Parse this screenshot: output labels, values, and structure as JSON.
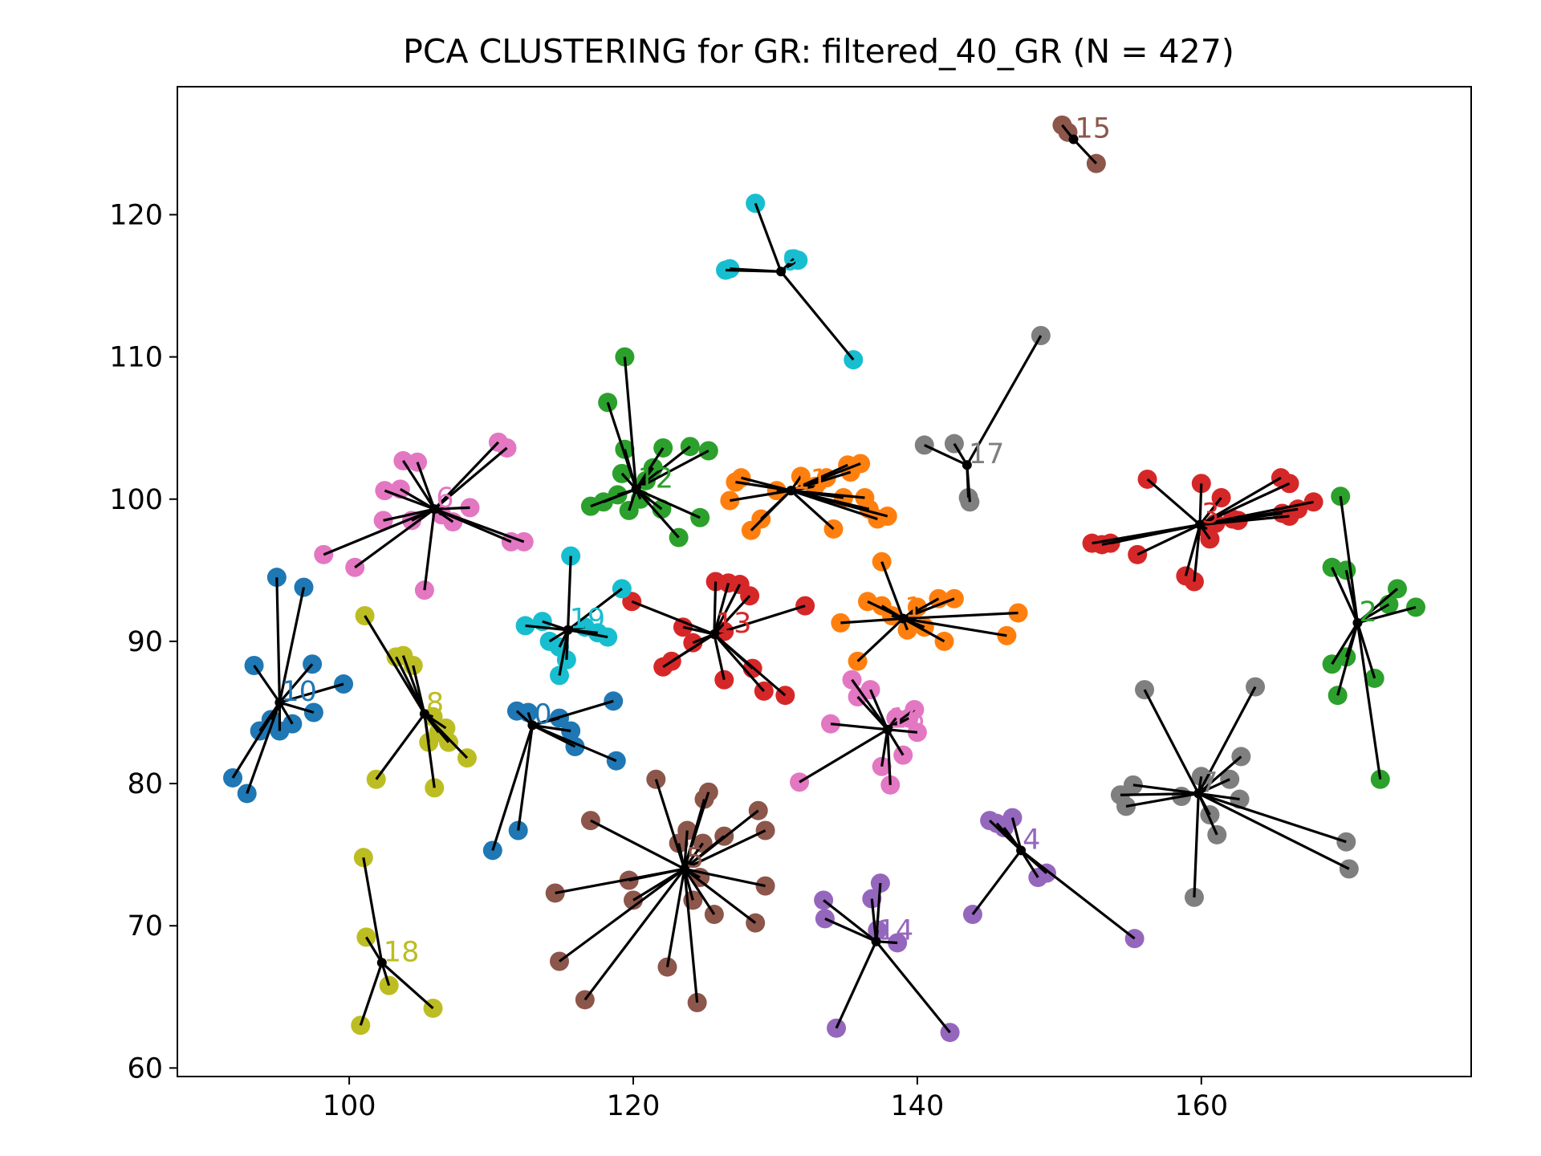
{
  "chart_data": {
    "type": "scatter",
    "title": "PCA CLUSTERING for GR: filtered_40_GR  (N = 427)",
    "xlabel": "",
    "ylabel": "",
    "xlim": [
      87.9,
      179.0
    ],
    "ylim": [
      59.4,
      129.0
    ],
    "xticks": [
      100,
      120,
      140,
      160
    ],
    "yticks": [
      60,
      70,
      80,
      90,
      100,
      110,
      120
    ],
    "grid": false,
    "legend": "none",
    "center_color": "#000000",
    "clusters": [
      {
        "label": "0",
        "color": "#1f77b4",
        "center": [
          112.9,
          84.1
        ],
        "points": [
          [
            110.1,
            75.3
          ],
          [
            111.9,
            76.7
          ],
          [
            111.8,
            85.1
          ],
          [
            112.6,
            85.0
          ],
          [
            114.8,
            84.6
          ],
          [
            115.6,
            83.7
          ],
          [
            115.9,
            82.6
          ],
          [
            118.6,
            85.8
          ],
          [
            118.8,
            81.6
          ]
        ]
      },
      {
        "label": "1",
        "color": "#ff7f0e",
        "center": [
          139.0,
          91.6
        ],
        "points": [
          [
            137.5,
            95.6
          ],
          [
            134.6,
            91.3
          ],
          [
            135.8,
            88.6
          ],
          [
            136.5,
            92.8
          ],
          [
            137.5,
            92.5
          ],
          [
            138.2,
            91.8
          ],
          [
            139.3,
            90.8
          ],
          [
            140.0,
            92.4
          ],
          [
            140.5,
            91.0
          ],
          [
            141.5,
            93.0
          ],
          [
            141.9,
            90.0
          ],
          [
            142.6,
            93.0
          ],
          [
            146.3,
            90.4
          ],
          [
            147.1,
            92.0
          ]
        ]
      },
      {
        "label": "2",
        "color": "#2ca02c",
        "center": [
          171.0,
          91.3
        ],
        "points": [
          [
            169.2,
            95.2
          ],
          [
            170.2,
            95.0
          ],
          [
            169.2,
            88.4
          ],
          [
            169.6,
            86.2
          ],
          [
            170.2,
            88.9
          ],
          [
            172.2,
            87.4
          ],
          [
            172.6,
            80.3
          ],
          [
            169.8,
            100.2
          ],
          [
            173.8,
            93.7
          ],
          [
            173.2,
            92.6
          ],
          [
            175.1,
            92.4
          ]
        ]
      },
      {
        "label": "3",
        "color": "#d62728",
        "center": [
          159.9,
          98.2
        ],
        "points": [
          [
            152.3,
            96.9
          ],
          [
            153.0,
            96.8
          ],
          [
            153.6,
            96.9
          ],
          [
            155.5,
            96.1
          ],
          [
            156.2,
            101.4
          ],
          [
            158.9,
            94.6
          ],
          [
            159.5,
            94.2
          ],
          [
            160.0,
            101.1
          ],
          [
            160.4,
            97.9
          ],
          [
            160.6,
            97.2
          ],
          [
            161.4,
            100.1
          ],
          [
            162.2,
            98.6
          ],
          [
            162.6,
            98.5
          ],
          [
            165.7,
            99.0
          ],
          [
            165.6,
            101.5
          ],
          [
            166.2,
            101.1
          ],
          [
            166.8,
            99.3
          ],
          [
            167.9,
            99.8
          ],
          [
            166.2,
            98.8
          ],
          [
            161.0,
            98.3
          ]
        ]
      },
      {
        "label": "4",
        "color": "#9467bd",
        "center": [
          147.3,
          75.3
        ],
        "points": [
          [
            145.1,
            77.4
          ],
          [
            145.6,
            77.2
          ],
          [
            146.1,
            76.9
          ],
          [
            146.7,
            77.6
          ],
          [
            148.5,
            73.4
          ],
          [
            149.1,
            73.7
          ],
          [
            143.9,
            70.8
          ],
          [
            155.3,
            69.1
          ]
        ]
      },
      {
        "label": "5",
        "color": "#8c564b",
        "center": [
          123.6,
          74.0
        ],
        "points": [
          [
            114.5,
            72.3
          ],
          [
            114.8,
            67.5
          ],
          [
            116.6,
            64.8
          ],
          [
            117.0,
            77.4
          ],
          [
            119.7,
            73.2
          ],
          [
            120.0,
            71.8
          ],
          [
            121.6,
            80.3
          ],
          [
            122.4,
            67.1
          ],
          [
            123.2,
            75.8
          ],
          [
            123.8,
            76.7
          ],
          [
            124.2,
            71.8
          ],
          [
            124.5,
            64.6
          ],
          [
            124.9,
            75.8
          ],
          [
            125.3,
            79.4
          ],
          [
            125.0,
            78.9
          ],
          [
            125.7,
            70.8
          ],
          [
            126.4,
            76.3
          ],
          [
            128.6,
            70.2
          ],
          [
            128.8,
            78.1
          ],
          [
            129.3,
            72.8
          ],
          [
            129.3,
            76.7
          ],
          [
            124.7,
            73.4
          ]
        ]
      },
      {
        "label": "6",
        "color": "#e377c2",
        "center": [
          106.0,
          99.3
        ],
        "points": [
          [
            98.2,
            96.1
          ],
          [
            100.4,
            95.2
          ],
          [
            102.5,
            100.6
          ],
          [
            103.8,
            102.7
          ],
          [
            104.8,
            102.6
          ],
          [
            105.3,
            93.6
          ],
          [
            104.4,
            98.5
          ],
          [
            102.4,
            98.5
          ],
          [
            106.5,
            98.9
          ],
          [
            107.3,
            98.4
          ],
          [
            108.5,
            99.4
          ],
          [
            110.5,
            104.0
          ],
          [
            111.1,
            103.6
          ],
          [
            111.4,
            97.0
          ],
          [
            112.3,
            97.0
          ],
          [
            103.6,
            100.7
          ]
        ]
      },
      {
        "label": "7",
        "color": "#7f7f7f",
        "center": [
          159.8,
          79.3
        ],
        "points": [
          [
            154.3,
            79.2
          ],
          [
            154.7,
            78.4
          ],
          [
            155.2,
            79.9
          ],
          [
            156.0,
            86.6
          ],
          [
            158.6,
            79.1
          ],
          [
            159.5,
            72.0
          ],
          [
            160.0,
            80.5
          ],
          [
            160.6,
            77.8
          ],
          [
            161.1,
            76.4
          ],
          [
            162.0,
            80.3
          ],
          [
            162.8,
            81.9
          ],
          [
            162.7,
            78.9
          ],
          [
            163.8,
            86.8
          ],
          [
            170.2,
            75.9
          ],
          [
            170.4,
            74.0
          ]
        ]
      },
      {
        "label": "8",
        "color": "#bcbd22",
        "center": [
          105.3,
          84.9
        ],
        "points": [
          [
            101.1,
            91.8
          ],
          [
            101.9,
            80.3
          ],
          [
            103.3,
            88.9
          ],
          [
            103.8,
            89.0
          ],
          [
            104.5,
            88.3
          ],
          [
            105.6,
            82.9
          ],
          [
            106.0,
            79.7
          ],
          [
            106.3,
            83.6
          ],
          [
            106.8,
            83.9
          ],
          [
            107.0,
            82.9
          ],
          [
            108.3,
            81.8
          ],
          [
            105.9,
            84.7
          ]
        ]
      },
      {
        "label": "9",
        "color": "#17becf",
        "center": [
          130.4,
          116.0
        ],
        "points": [
          [
            126.5,
            116.1
          ],
          [
            126.8,
            116.2
          ],
          [
            128.6,
            120.8
          ],
          [
            131.3,
            116.9
          ],
          [
            131.6,
            116.8
          ],
          [
            135.5,
            109.8
          ]
        ]
      },
      {
        "label": "10",
        "color": "#1f77b4",
        "center": [
          95.1,
          85.7
        ],
        "points": [
          [
            91.8,
            80.4
          ],
          [
            92.8,
            79.3
          ],
          [
            93.3,
            88.3
          ],
          [
            93.7,
            83.7
          ],
          [
            94.5,
            84.5
          ],
          [
            94.9,
            94.5
          ],
          [
            95.1,
            83.7
          ],
          [
            96.0,
            84.2
          ],
          [
            96.8,
            93.8
          ],
          [
            97.4,
            88.4
          ],
          [
            97.5,
            85.0
          ],
          [
            99.6,
            87.0
          ]
        ]
      },
      {
        "label": "11",
        "color": "#ff7f0e",
        "center": [
          131.1,
          100.6
        ],
        "points": [
          [
            126.8,
            99.9
          ],
          [
            127.2,
            101.2
          ],
          [
            127.6,
            101.5
          ],
          [
            128.3,
            97.8
          ],
          [
            129.0,
            98.6
          ],
          [
            130.1,
            100.6
          ],
          [
            131.8,
            101.6
          ],
          [
            132.8,
            100.9
          ],
          [
            133.6,
            101.5
          ],
          [
            134.1,
            97.9
          ],
          [
            134.8,
            100.1
          ],
          [
            135.1,
            102.4
          ],
          [
            136.0,
            102.5
          ],
          [
            136.3,
            100.1
          ],
          [
            136.6,
            99.3
          ],
          [
            137.2,
            98.6
          ],
          [
            137.9,
            98.8
          ],
          [
            135.3,
            101.9
          ]
        ]
      },
      {
        "label": "12",
        "color": "#2ca02c",
        "center": [
          120.2,
          100.7
        ],
        "points": [
          [
            117.0,
            99.5
          ],
          [
            117.9,
            99.8
          ],
          [
            118.2,
            106.8
          ],
          [
            118.9,
            100.3
          ],
          [
            119.2,
            101.8
          ],
          [
            119.4,
            110.0
          ],
          [
            119.4,
            103.5
          ],
          [
            119.7,
            99.2
          ],
          [
            120.5,
            100.0
          ],
          [
            120.9,
            101.3
          ],
          [
            121.4,
            102.2
          ],
          [
            122.0,
            99.3
          ],
          [
            122.1,
            103.6
          ],
          [
            123.2,
            97.3
          ],
          [
            124.0,
            103.7
          ],
          [
            124.7,
            98.7
          ],
          [
            125.3,
            103.4
          ]
        ]
      },
      {
        "label": "13",
        "color": "#d62728",
        "center": [
          125.7,
          90.5
        ],
        "points": [
          [
            119.9,
            92.8
          ],
          [
            122.1,
            88.2
          ],
          [
            122.7,
            88.6
          ],
          [
            123.5,
            91.0
          ],
          [
            124.2,
            89.9
          ],
          [
            125.8,
            94.2
          ],
          [
            126.4,
            87.3
          ],
          [
            126.4,
            90.7
          ],
          [
            126.7,
            94.1
          ],
          [
            127.5,
            94.0
          ],
          [
            128.2,
            93.2
          ],
          [
            128.4,
            88.1
          ],
          [
            129.2,
            86.5
          ],
          [
            130.7,
            86.2
          ],
          [
            132.1,
            92.5
          ]
        ]
      },
      {
        "label": "14",
        "color": "#9467bd",
        "center": [
          137.1,
          68.9
        ],
        "points": [
          [
            133.4,
            71.8
          ],
          [
            133.5,
            70.5
          ],
          [
            134.3,
            62.8
          ],
          [
            136.8,
            71.9
          ],
          [
            137.2,
            69.7
          ],
          [
            137.4,
            73.0
          ],
          [
            138.6,
            68.8
          ],
          [
            142.3,
            62.5
          ]
        ]
      },
      {
        "label": "15",
        "color": "#8c564b",
        "center": [
          151.0,
          125.3
        ],
        "points": [
          [
            150.2,
            126.3
          ],
          [
            150.6,
            125.8
          ],
          [
            152.6,
            123.6
          ]
        ]
      },
      {
        "label": "16",
        "color": "#e377c2",
        "center": [
          137.9,
          83.8
        ],
        "points": [
          [
            131.7,
            80.1
          ],
          [
            133.9,
            84.2
          ],
          [
            135.4,
            87.3
          ],
          [
            135.8,
            86.1
          ],
          [
            136.7,
            86.6
          ],
          [
            137.5,
            81.2
          ],
          [
            138.1,
            79.9
          ],
          [
            138.5,
            84.6
          ],
          [
            139.0,
            82.0
          ],
          [
            139.4,
            84.6
          ],
          [
            139.8,
            85.2
          ],
          [
            140.0,
            83.6
          ]
        ]
      },
      {
        "label": "17",
        "color": "#7f7f7f",
        "center": [
          143.5,
          102.4
        ],
        "points": [
          [
            140.5,
            103.8
          ],
          [
            142.6,
            103.9
          ],
          [
            143.7,
            99.8
          ],
          [
            143.6,
            100.1
          ],
          [
            148.7,
            111.5
          ]
        ]
      },
      {
        "label": "18",
        "color": "#bcbd22",
        "center": [
          102.3,
          67.4
        ],
        "points": [
          [
            100.8,
            63.0
          ],
          [
            101.0,
            74.8
          ],
          [
            101.2,
            69.2
          ],
          [
            102.8,
            65.8
          ],
          [
            105.9,
            64.2
          ]
        ]
      },
      {
        "label": "19",
        "color": "#17becf",
        "center": [
          115.4,
          90.8
        ],
        "points": [
          [
            112.4,
            91.1
          ],
          [
            113.6,
            91.4
          ],
          [
            114.1,
            90.0
          ],
          [
            114.8,
            89.6
          ],
          [
            114.8,
            87.6
          ],
          [
            115.3,
            88.7
          ],
          [
            115.6,
            96.0
          ],
          [
            116.6,
            91.0
          ],
          [
            117.5,
            90.6
          ],
          [
            118.2,
            90.3
          ],
          [
            119.2,
            93.7
          ]
        ]
      }
    ]
  }
}
